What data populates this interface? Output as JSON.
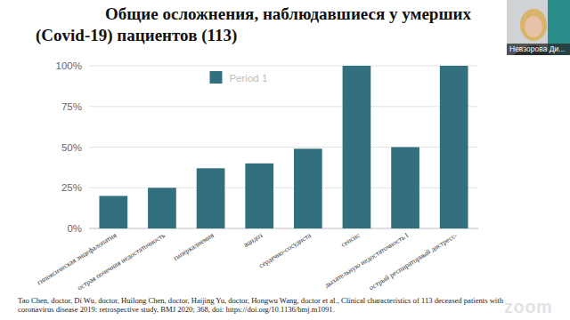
{
  "chart_data": {
    "type": "bar",
    "title": "Общие осложнения, наблюдавшиеся у умерших (Covid-19) пациентов (113)",
    "categories": [
      "гипоксическая энцефалопатия",
      "острая почечная недостаточность",
      "гиперкалиемия",
      "ацидоз",
      "сердечно-сосудиста",
      "сепсис",
      "дыхательную недостаточность I",
      "острый респираторный дистресс-"
    ],
    "series": [
      {
        "name": "Period 1",
        "color": "#33707f",
        "values": [
          20,
          25,
          37,
          40,
          49,
          100,
          50,
          100
        ]
      }
    ],
    "ylim": [
      0,
      100
    ],
    "yticks": [
      {
        "value": 0,
        "label": "0%"
      },
      {
        "value": 25,
        "label": "25%"
      },
      {
        "value": 50,
        "label": "50%"
      },
      {
        "value": 75,
        "label": "75%"
      },
      {
        "value": 100,
        "label": "100%"
      }
    ],
    "grid": true,
    "legend": "top",
    "annotations": [
      "Tao Chen, doctor,  Di Wu, doctor,  Huilong Chen, doctor,  Haijing Yu, doctor,  Hongwu Wang, doctor et al., Clinical characteristics of 113 deceased patients with coronavirus disease 2019: retrospective study, BMJ 2020; 368, doi: https://doi.org/10.1136/bmj.m1091."
    ]
  },
  "video": {
    "speaker": "Невзорова Ди...",
    "watermark": "zoom"
  }
}
